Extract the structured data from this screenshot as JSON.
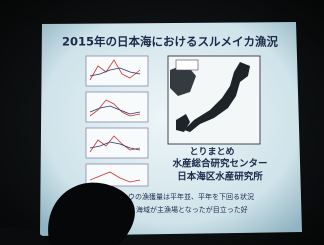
{
  "slide": {
    "title": "2015年の日本海におけるスルメイカ漁況",
    "credit": [
      "とりまとめ",
      "水産総合研究センター",
      "日本海区水産研究所"
    ],
    "body": [
      "ウの漁獲量は平年並、平年を下回る状況",
      "辺）海域が主漁場となったが目立った好"
    ]
  }
}
